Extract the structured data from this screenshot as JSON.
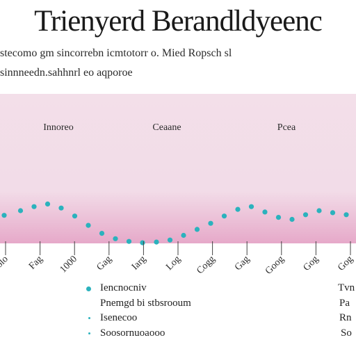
{
  "header": {
    "title": "Trienyerd Berandldyeenc",
    "subtitle_1": "stecomo gm sincorrebn icmtotorr o. Mied Ropsch sl",
    "subtitle_2": "sinnneedn.sahhnrl eo aqporoe"
  },
  "chart_data": {
    "type": "line",
    "title": "Trienyerd Berandldyeenc",
    "top_labels": [
      "Innoreo",
      "Ceaane",
      "Pcea"
    ],
    "x_tick_labels": [
      "Tolo",
      "Fag",
      "1000",
      "Gag",
      "Iarg",
      "Log",
      "Cogg",
      "Gag",
      "Goog",
      "Gog",
      "Gog"
    ],
    "ylim": [
      0,
      1
    ],
    "grid": false,
    "series": [
      {
        "color": "#2bb2bd",
        "x": [
          0,
          0.047,
          0.086,
          0.125,
          0.164,
          0.203,
          0.242,
          0.281,
          0.32,
          0.359,
          0.398,
          0.438,
          0.477,
          0.516,
          0.555,
          0.594,
          0.633,
          0.672,
          0.711,
          0.75,
          0.789,
          0.828,
          0.867,
          0.906,
          0.945,
          0.984
        ],
        "values": [
          0.43,
          0.5,
          0.56,
          0.6,
          0.54,
          0.42,
          0.28,
          0.16,
          0.08,
          0.04,
          0.02,
          0.03,
          0.06,
          0.13,
          0.22,
          0.31,
          0.42,
          0.52,
          0.56,
          0.48,
          0.4,
          0.37,
          0.44,
          0.5,
          0.47,
          0.44
        ]
      }
    ],
    "legend": {
      "position": "bottom-left",
      "entries": [
        {
          "label": "Iencnocniv",
          "color": "#2bb2bd"
        },
        {
          "label": "Pnemgd bi stbsrooum",
          "color": ""
        },
        {
          "label": "Isenecoo",
          "color": "#2bb2bd"
        },
        {
          "label": "Soosornuoaooo",
          "color": "#2bb2bd"
        }
      ],
      "right_notes": [
        "Tvn",
        "Pa",
        "Rn",
        "So"
      ]
    }
  }
}
